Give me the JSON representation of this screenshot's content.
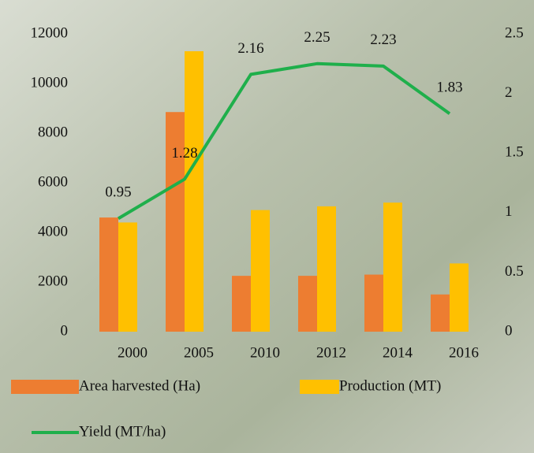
{
  "chart_data": {
    "type": "bar",
    "categories": [
      "2000",
      "2005",
      "2010",
      "2012",
      "2014",
      "2016"
    ],
    "series": [
      {
        "name": "Area harvested (Ha)",
        "color": "#ed7d31",
        "values": [
          4600,
          8850,
          2250,
          2250,
          2300,
          1500
        ]
      },
      {
        "name": "Production (MT)",
        "color": "#ffc000",
        "values": [
          4400,
          11300,
          4900,
          5050,
          5200,
          2750
        ]
      },
      {
        "name": "Yield (MT/ha)",
        "color": "#1faf4b",
        "type": "line",
        "axis": "y2",
        "values": [
          0.95,
          1.28,
          2.16,
          2.25,
          2.23,
          1.83
        ]
      }
    ],
    "ylim": [
      0,
      12000
    ],
    "yticks": [
      0,
      2000,
      4000,
      6000,
      8000,
      10000,
      12000
    ],
    "y2lim": [
      0,
      2.5
    ],
    "y2ticks": [
      0,
      0.5,
      1,
      1.5,
      2,
      2.5
    ],
    "legend": "bottom",
    "grid": false
  }
}
